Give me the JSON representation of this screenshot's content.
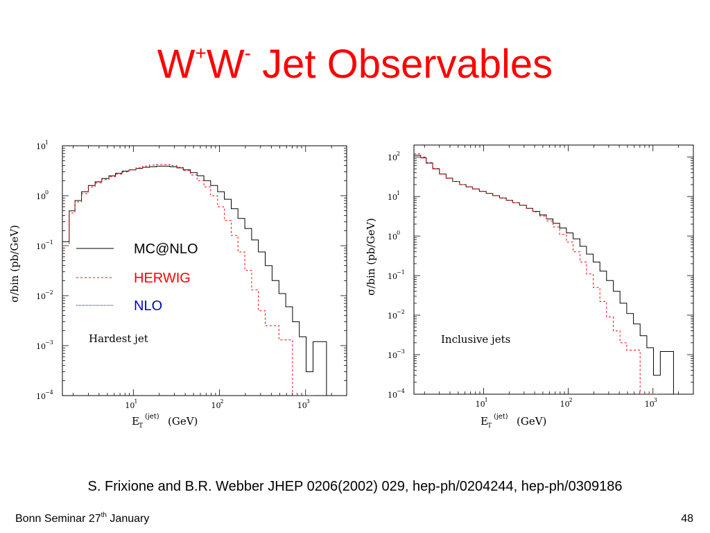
{
  "slide": {
    "title_main1": "W",
    "title_sup1": "+",
    "title_main2": "W",
    "title_sup2": "-",
    "title_main3": " Jet Observables",
    "citation": "S. Frixione and B.R. Webber JHEP 0206(2002) 029, hep-ph/0204244, hep-ph/0309186",
    "footer_text": "Bonn Seminar 27",
    "footer_sup": "th",
    "footer_text2": " January",
    "page_number": "48"
  },
  "colors": {
    "title": "#ff0000",
    "mcatnlo": "#000000",
    "herwig": "#ff0000",
    "nlo": "#0000cc"
  },
  "chart_data": [
    {
      "type": "line",
      "scale": "log-log",
      "annotation": "Hardest jet",
      "ylabel": "σ/bin (pb/GeV)",
      "xlabel_main": "E",
      "xlabel_sub": "T",
      "xlabel_sup": "(jet)",
      "xlabel_unit": "(GeV)",
      "xlim": [
        1.5,
        3000
      ],
      "ylim": [
        0.0001,
        10
      ],
      "x_ticks": [
        {
          "base": "10",
          "exp": "1",
          "v": 10
        },
        {
          "base": "10",
          "exp": "2",
          "v": 100
        },
        {
          "base": "10",
          "exp": "3",
          "v": 1000
        }
      ],
      "y_ticks": [
        {
          "base": "10",
          "exp": "1",
          "v": 10
        },
        {
          "base": "10",
          "exp": "0",
          "v": 1
        },
        {
          "base": "10",
          "exp": "−1",
          "v": 0.1
        },
        {
          "base": "10",
          "exp": "−2",
          "v": 0.01
        },
        {
          "base": "10",
          "exp": "−3",
          "v": 0.001
        },
        {
          "base": "10",
          "exp": "−4",
          "v": 0.0001
        }
      ],
      "legend": [
        {
          "label": "MC@NLO",
          "color": "#000000",
          "dash": "none"
        },
        {
          "label": "HERWIG",
          "color": "#ff0000",
          "dash": "3,3"
        },
        {
          "label": "NLO",
          "color": "#0000cc",
          "dash": "1,1"
        }
      ],
      "series": [
        {
          "name": "MC@NLO",
          "color": "#000000",
          "dash": "none",
          "x": [
            1.5,
            1.8,
            2.1,
            2.5,
            3,
            3.6,
            4.3,
            5.2,
            6.2,
            7.4,
            8.9,
            10.7,
            12.8,
            15.4,
            18.5,
            22,
            26.5,
            32,
            38,
            46,
            55,
            66,
            79,
            95,
            114,
            137,
            164,
            197,
            236,
            283,
            340,
            408,
            490,
            588,
            705,
            846,
            1015,
            1220,
            1460,
            1750,
            2100
          ],
          "y": [
            0.12,
            0.5,
            0.8,
            1.2,
            1.6,
            1.9,
            2.2,
            2.5,
            2.8,
            3.1,
            3.3,
            3.5,
            3.7,
            3.8,
            3.9,
            3.9,
            3.8,
            3.6,
            3.3,
            2.9,
            2.5,
            2.0,
            1.6,
            1.2,
            0.85,
            0.55,
            0.35,
            0.22,
            0.13,
            0.075,
            0.04,
            0.02,
            0.011,
            0.006,
            0.003,
            0.0015,
            0.0003,
            0.0012,
            0.0012,
            0.0001,
            0.0001
          ]
        },
        {
          "name": "HERWIG",
          "color": "#ff0000",
          "dash": "3,3",
          "x": [
            1.5,
            1.8,
            2.1,
            2.5,
            3,
            3.6,
            4.3,
            5.2,
            6.2,
            7.4,
            8.9,
            10.7,
            12.8,
            15.4,
            18.5,
            22,
            26.5,
            32,
            38,
            46,
            55,
            66,
            79,
            95,
            114,
            137,
            164,
            197,
            236,
            283,
            340,
            408,
            490,
            588,
            705,
            846,
            1015
          ],
          "y": [
            0.1,
            0.45,
            0.75,
            1.1,
            1.5,
            1.8,
            2.1,
            2.4,
            2.7,
            3.0,
            3.3,
            3.6,
            3.9,
            4.1,
            4.2,
            4.2,
            4.0,
            3.7,
            3.2,
            2.6,
            2.0,
            1.5,
            1.0,
            0.6,
            0.32,
            0.16,
            0.075,
            0.032,
            0.013,
            0.005,
            0.0025,
            0.0025,
            0.0013,
            0.0013,
            0.0001,
            0.0001,
            0.0001
          ]
        },
        {
          "name": "NLO",
          "color": "#0000cc",
          "dash": "1,1",
          "x": [],
          "y": []
        }
      ]
    },
    {
      "type": "line",
      "scale": "log-log",
      "annotation": "Inclusive jets",
      "ylabel": "σ/bin (pb/GeV)",
      "xlabel_main": "E",
      "xlabel_sub": "T",
      "xlabel_sup": "(jet)",
      "xlabel_unit": "(GeV)",
      "xlim": [
        1.5,
        3000
      ],
      "ylim": [
        0.0001,
        200
      ],
      "x_ticks": [
        {
          "base": "10",
          "exp": "1",
          "v": 10
        },
        {
          "base": "10",
          "exp": "2",
          "v": 100
        },
        {
          "base": "10",
          "exp": "3",
          "v": 1000
        }
      ],
      "y_ticks": [
        {
          "base": "10",
          "exp": "2",
          "v": 100
        },
        {
          "base": "10",
          "exp": "1",
          "v": 10
        },
        {
          "base": "10",
          "exp": "0",
          "v": 1
        },
        {
          "base": "10",
          "exp": "−1",
          "v": 0.1
        },
        {
          "base": "10",
          "exp": "−2",
          "v": 0.01
        },
        {
          "base": "10",
          "exp": "−3",
          "v": 0.001
        },
        {
          "base": "10",
          "exp": "−4",
          "v": 0.0001
        }
      ],
      "series": [
        {
          "name": "MC@NLO",
          "color": "#000000",
          "dash": "none",
          "x": [
            1.5,
            1.8,
            2.1,
            2.5,
            3,
            3.6,
            4.3,
            5.2,
            6.2,
            7.4,
            8.9,
            10.7,
            12.8,
            15.4,
            18.5,
            22,
            26.5,
            32,
            38,
            46,
            55,
            66,
            79,
            95,
            114,
            137,
            164,
            197,
            236,
            283,
            340,
            408,
            490,
            588,
            705,
            846,
            1015,
            1220,
            1460,
            1750,
            2100
          ],
          "y": [
            110,
            95,
            70,
            50,
            37,
            29,
            24,
            20,
            17.5,
            15.5,
            13.5,
            12,
            10.5,
            9.2,
            8,
            7,
            6,
            5,
            4.2,
            3.4,
            2.7,
            2.1,
            1.6,
            1.2,
            0.85,
            0.55,
            0.35,
            0.22,
            0.13,
            0.075,
            0.04,
            0.02,
            0.011,
            0.006,
            0.003,
            0.0015,
            0.0003,
            0.0012,
            0.0012,
            0.0001,
            0.0001
          ]
        },
        {
          "name": "HERWIG",
          "color": "#ff0000",
          "dash": "3,3",
          "x": [
            1.5,
            1.8,
            2.1,
            2.5,
            3,
            3.6,
            4.3,
            5.2,
            6.2,
            7.4,
            8.9,
            10.7,
            12.8,
            15.4,
            18.5,
            22,
            26.5,
            32,
            38,
            46,
            55,
            66,
            79,
            95,
            114,
            137,
            164,
            197,
            236,
            283,
            340,
            408,
            490,
            588,
            705,
            846,
            1015
          ],
          "y": [
            120,
            100,
            72,
            51,
            37,
            29,
            24,
            20,
            17.5,
            15.5,
            13.5,
            12,
            10.5,
            9.2,
            8,
            7,
            6,
            5,
            4.1,
            3.2,
            2.4,
            1.7,
            1.1,
            0.7,
            0.4,
            0.22,
            0.11,
            0.05,
            0.022,
            0.009,
            0.004,
            0.002,
            0.0013,
            0.0013,
            0.0001,
            0.0001,
            0.0001
          ]
        }
      ]
    }
  ]
}
